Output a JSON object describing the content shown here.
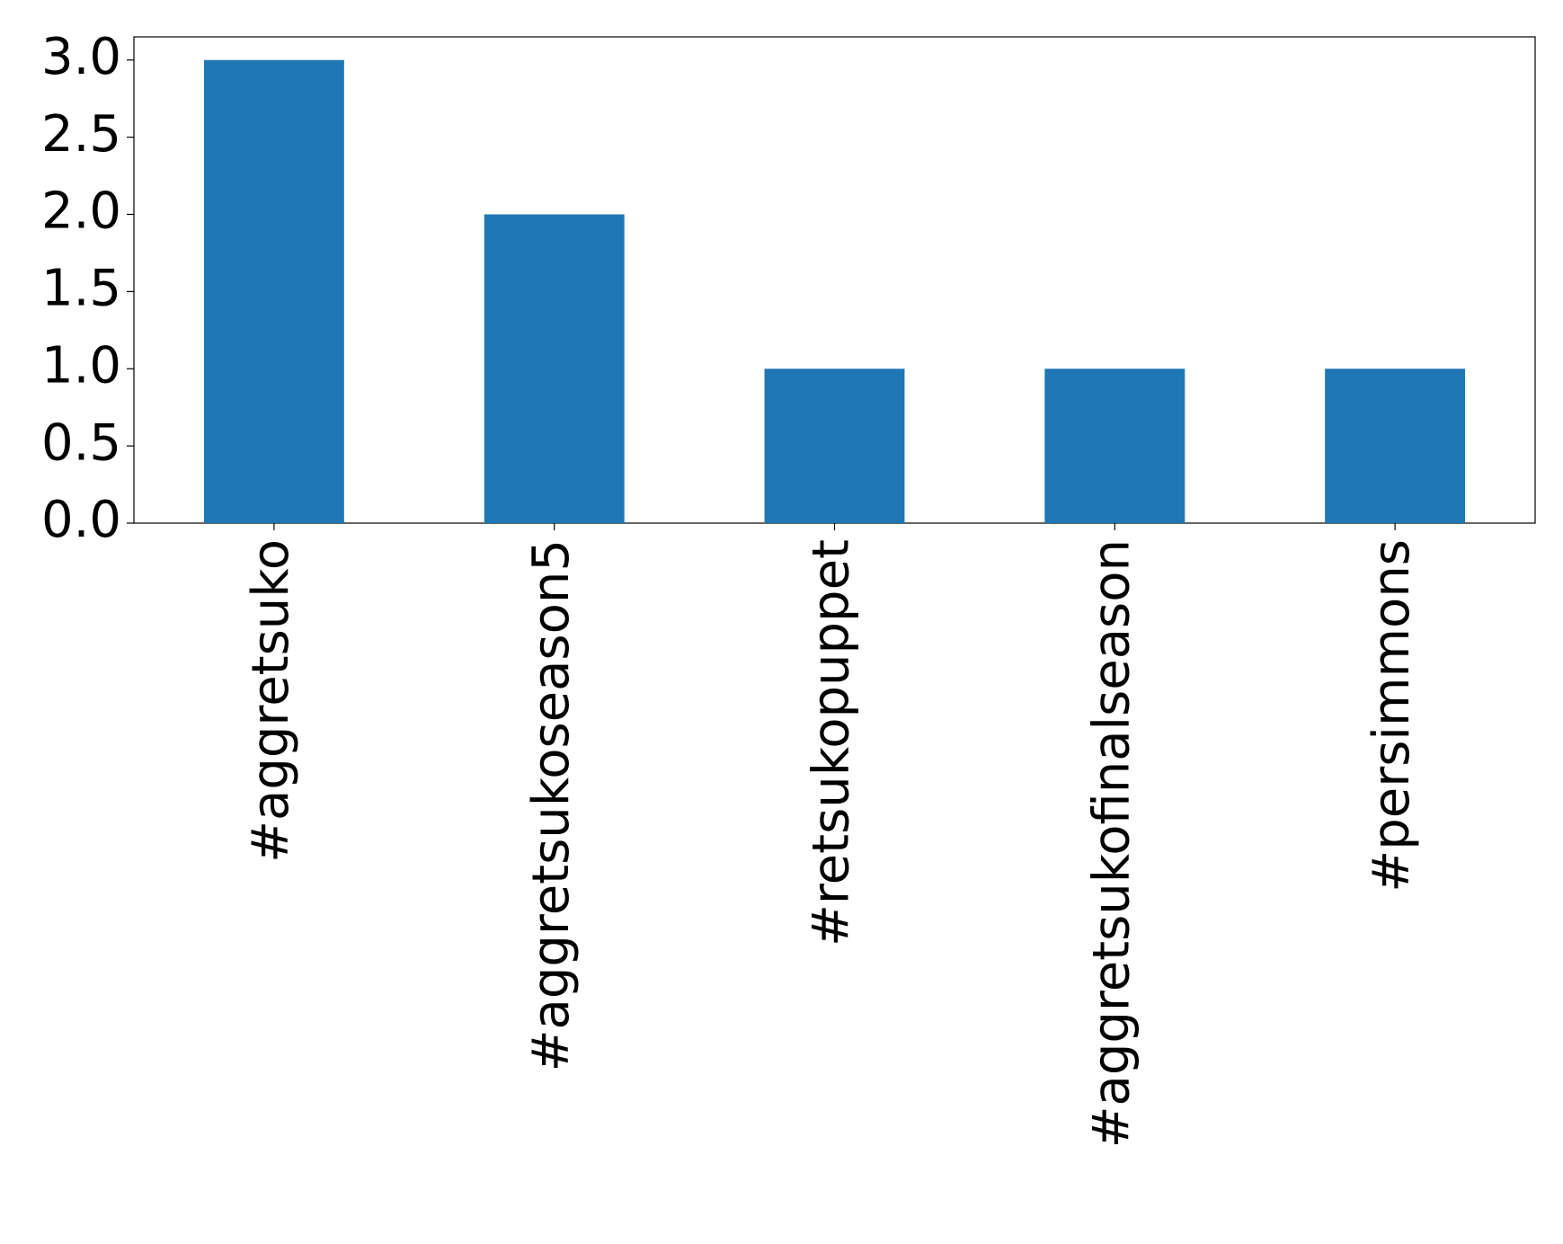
{
  "chart_data": {
    "type": "bar",
    "categories": [
      "#aggretsuko",
      "#aggretsukoseason5",
      "#retsukopuppet",
      "#aggretsukofinalseason",
      "#persimmons"
    ],
    "values": [
      3,
      2,
      1,
      1,
      1
    ],
    "color": "#1f77b4",
    "ylim": [
      0,
      3.15
    ],
    "yticks": [
      {
        "value": 0,
        "label": "0.0"
      },
      0.5,
      {
        "value": 1,
        "label": "1.0"
      },
      1.5,
      {
        "value": 2,
        "label": "2.0"
      },
      2.5,
      {
        "value": 3,
        "label": "3.0"
      }
    ],
    "grid": false
  }
}
